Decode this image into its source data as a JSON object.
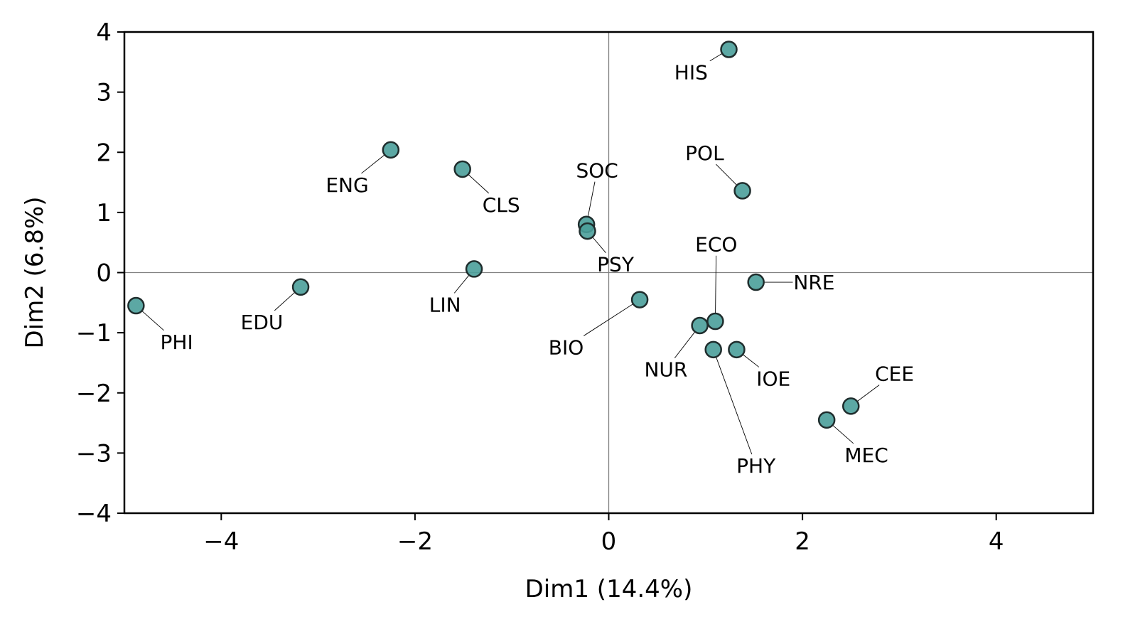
{
  "chart_data": {
    "type": "scatter",
    "title": "",
    "xlabel": "Dim1 (14.4%)",
    "ylabel": "Dim2 (6.8%)",
    "xlim": [
      -5,
      5
    ],
    "ylim": [
      -4,
      4
    ],
    "xticks": [
      -4,
      -2,
      0,
      2,
      4
    ],
    "yticks": [
      -4,
      -3,
      -2,
      -1,
      0,
      1,
      2,
      3,
      4
    ],
    "xtick_labels": [
      "−4",
      "−2",
      "0",
      "2",
      "4"
    ],
    "ytick_labels": [
      "−4",
      "−3",
      "−2",
      "−1",
      "0",
      "1",
      "2",
      "3",
      "4"
    ],
    "grid": false,
    "reference_lines": {
      "x": 0,
      "y": 0
    },
    "marker_color": "#4a9e9a",
    "marker_edge_color": "#1f2d2d",
    "points": [
      {
        "label": "HIS",
        "x": 1.24,
        "y": 3.71,
        "lx": 0.85,
        "ly": 3.33
      },
      {
        "label": "ENG",
        "x": -2.25,
        "y": 2.04,
        "lx": -2.7,
        "ly": 1.46
      },
      {
        "label": "CLS",
        "x": -1.51,
        "y": 1.72,
        "lx": -1.11,
        "ly": 1.13
      },
      {
        "label": "POL",
        "x": 1.38,
        "y": 1.36,
        "lx": 0.99,
        "ly": 1.99
      },
      {
        "label": "SOC",
        "x": -0.23,
        "y": 0.8,
        "lx": -0.12,
        "ly": 1.7
      },
      {
        "label": "PSY",
        "x": -0.22,
        "y": 0.69,
        "lx": 0.07,
        "ly": 0.14
      },
      {
        "label": "ECO",
        "x": 1.1,
        "y": -0.81,
        "lx": 1.11,
        "ly": 0.47
      },
      {
        "label": "LIN",
        "x": -1.39,
        "y": 0.06,
        "lx": -1.69,
        "ly": -0.53
      },
      {
        "label": "NRE",
        "x": 1.52,
        "y": -0.16,
        "lx": 2.12,
        "ly": -0.16
      },
      {
        "label": "EDU",
        "x": -3.18,
        "y": -0.24,
        "lx": -3.58,
        "ly": -0.82
      },
      {
        "label": "PHI",
        "x": -4.88,
        "y": -0.55,
        "lx": -4.46,
        "ly": -1.15
      },
      {
        "label": "BIO",
        "x": 0.32,
        "y": -0.45,
        "lx": -0.44,
        "ly": -1.24
      },
      {
        "label": "NUR",
        "x": 0.94,
        "y": -0.88,
        "lx": 0.59,
        "ly": -1.61
      },
      {
        "label": "PHY",
        "x": 1.08,
        "y": -1.28,
        "lx": 1.52,
        "ly": -3.21
      },
      {
        "label": "IOE",
        "x": 1.32,
        "y": -1.28,
        "lx": 1.7,
        "ly": -1.76
      },
      {
        "label": "CEE",
        "x": 2.5,
        "y": -2.22,
        "lx": 2.95,
        "ly": -1.68
      },
      {
        "label": "MEC",
        "x": 2.25,
        "y": -2.45,
        "lx": 2.66,
        "ly": -3.03
      }
    ]
  }
}
